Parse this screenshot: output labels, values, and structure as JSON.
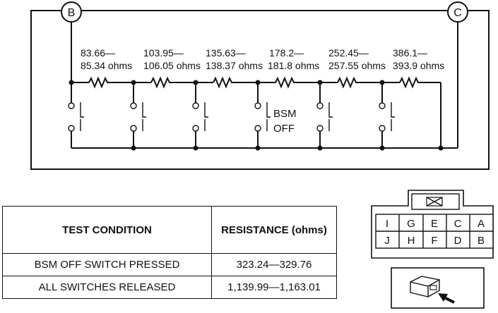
{
  "circuit": {
    "terminal_left": "B",
    "terminal_right": "C",
    "resistors": [
      {
        "line1": "83.66—",
        "line2": "85.34 ohms"
      },
      {
        "line1": "103.95—",
        "line2": "106.05 ohms"
      },
      {
        "line1": "135.63—",
        "line2": "138.37 ohms"
      },
      {
        "line1": "178.2—",
        "line2": "181.8 ohms"
      },
      {
        "line1": "252.45—",
        "line2": "257.55 ohms"
      },
      {
        "line1": "386.1—",
        "line2": "393.9 ohms"
      }
    ],
    "switch_label_line1": "BSM",
    "switch_label_line2": "OFF"
  },
  "table": {
    "header_condition": "TEST CONDITION",
    "header_resistance": "RESISTANCE (ohms)",
    "rows": [
      {
        "condition": "BSM OFF SWITCH PRESSED",
        "resistance": "323.24—329.76"
      },
      {
        "condition": "ALL SWITCHES RELEASED",
        "resistance": "1,139.99—1,163.01"
      }
    ]
  },
  "connector": {
    "top_row": [
      "I",
      "G",
      "E",
      "C",
      "A"
    ],
    "bottom_row": [
      "J",
      "H",
      "F",
      "D",
      "B"
    ]
  }
}
